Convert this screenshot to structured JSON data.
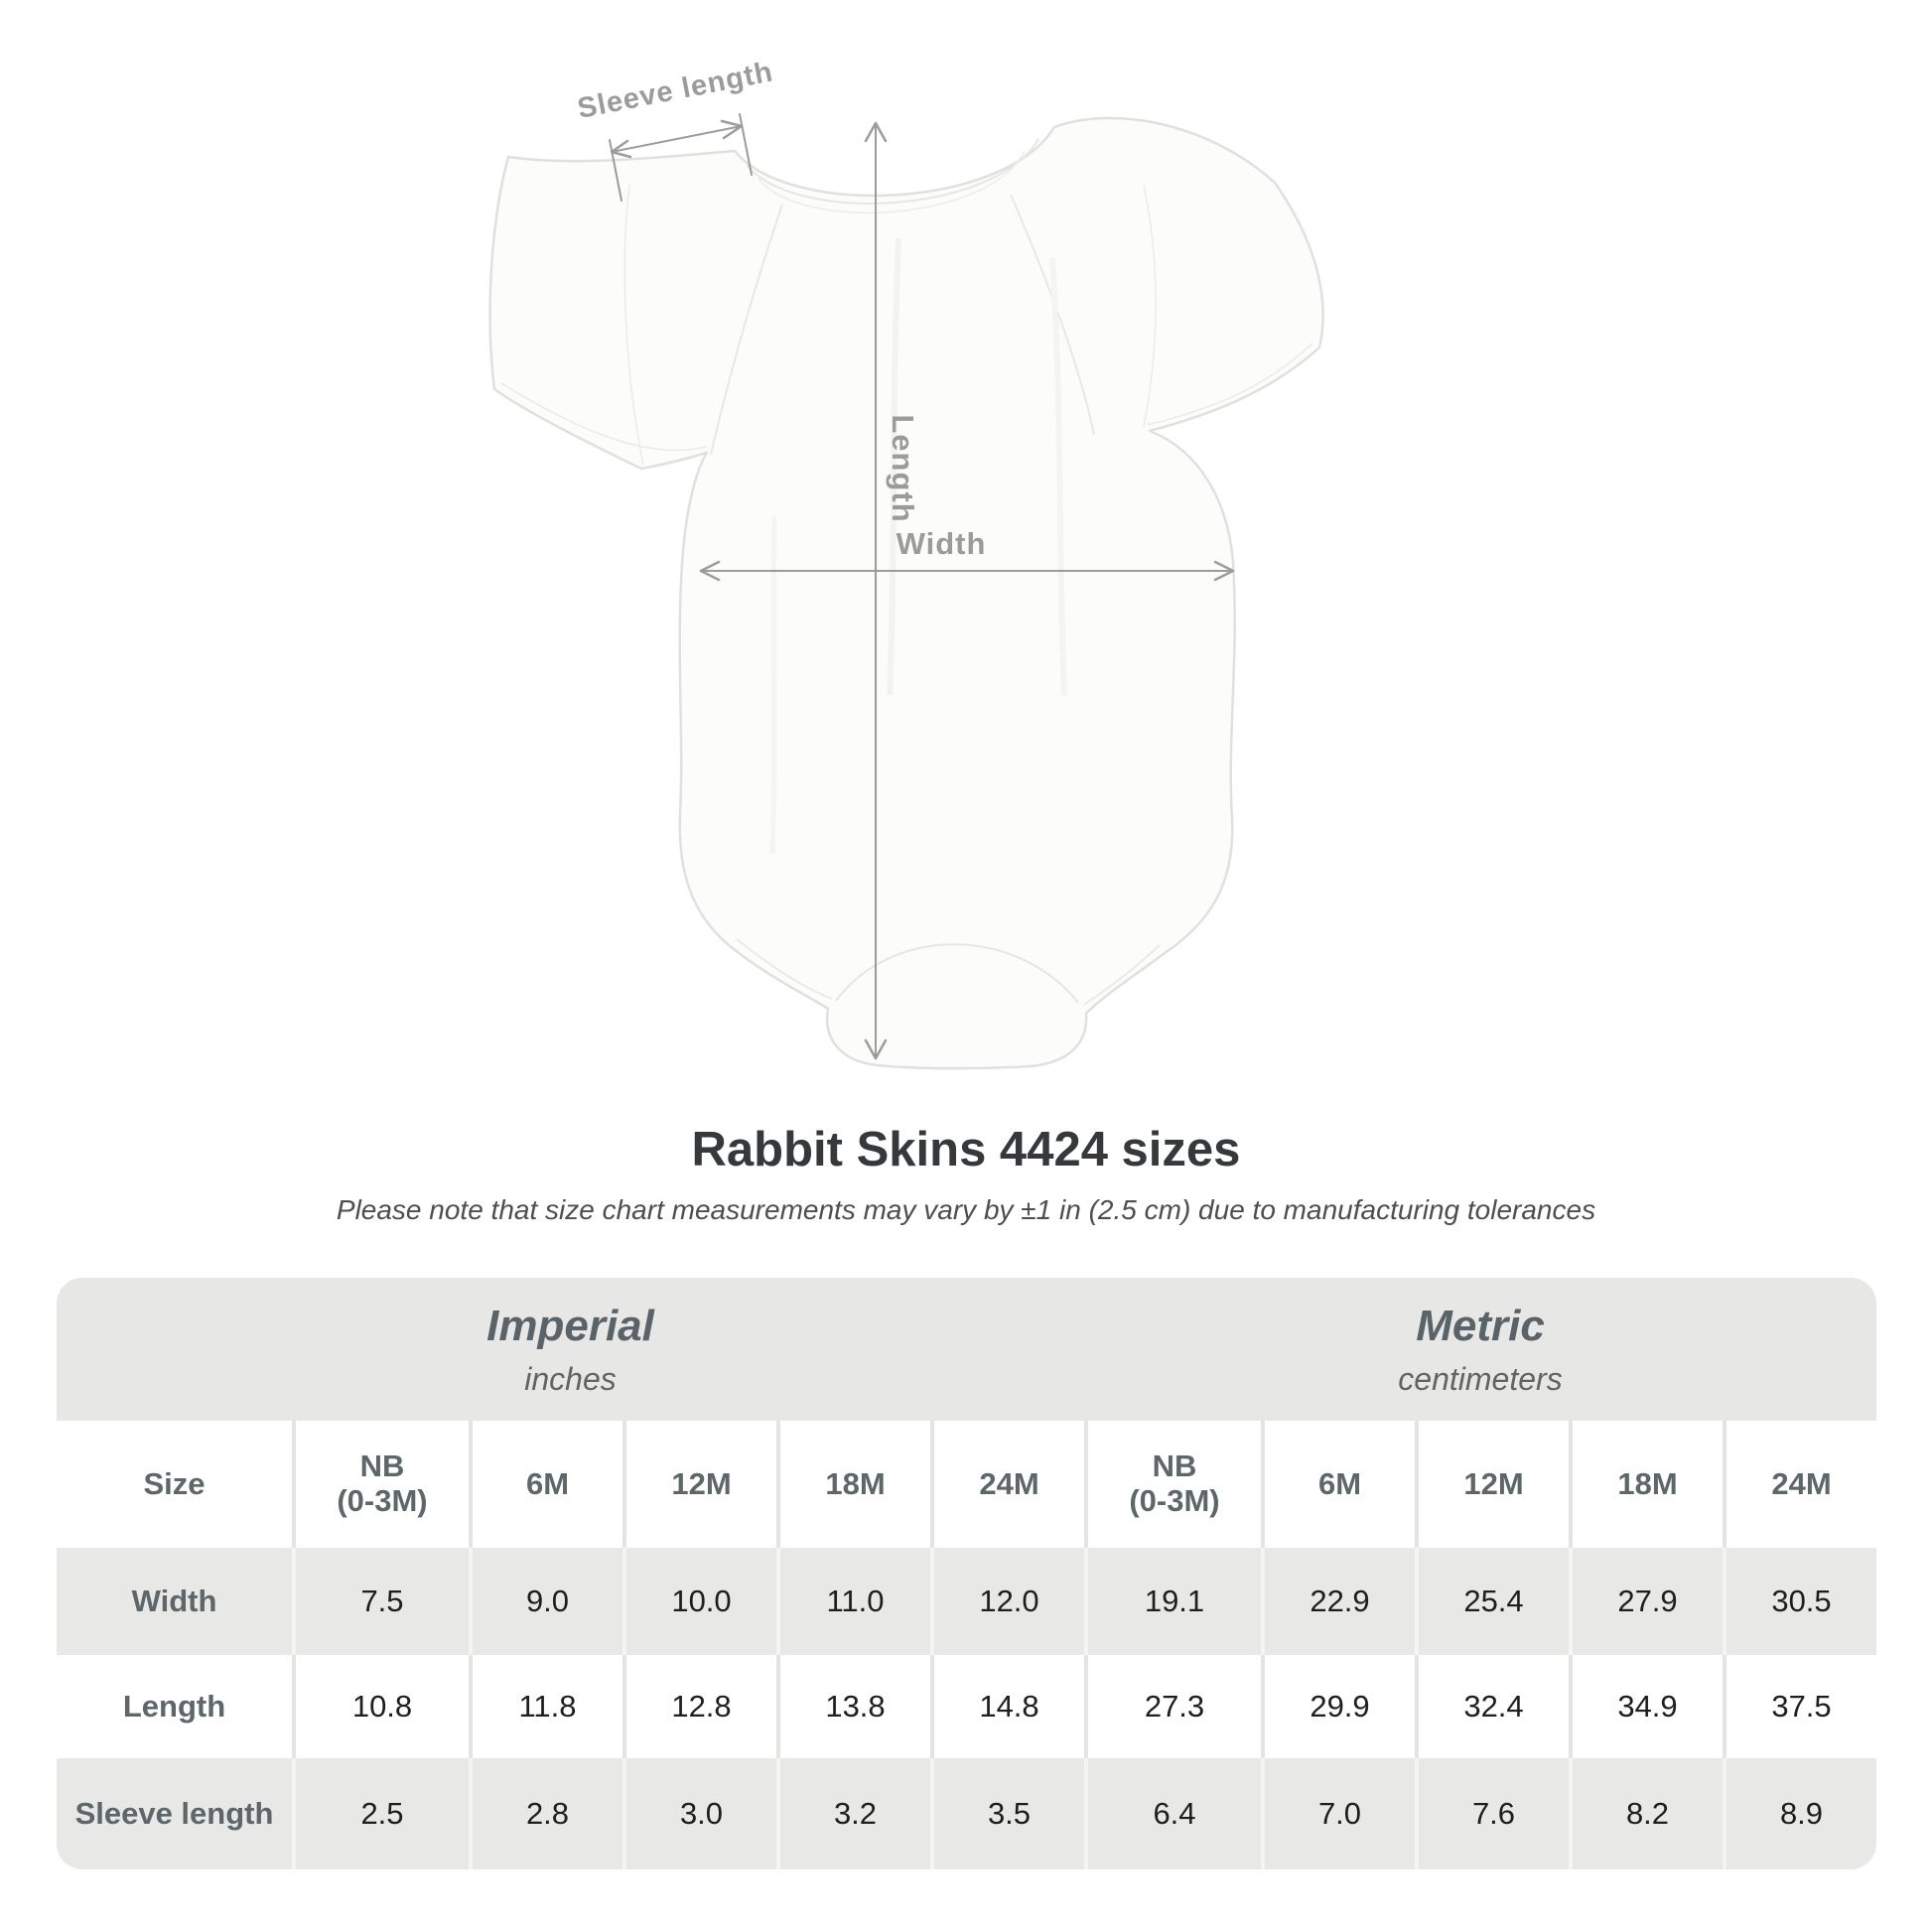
{
  "diagram": {
    "labels": {
      "sleeve_length": "Sleeve length",
      "length": "Length",
      "width": "Width"
    },
    "measure_color": "#9b9b9b",
    "garment_fill": "#fcfcfb",
    "garment_outline": "#e0e0de"
  },
  "title": "Rabbit Skins 4424 sizes",
  "subtitle": "Please note that size chart measurements may vary by ±1 in (2.5 cm) due to manufacturing tolerances",
  "chart_data": {
    "type": "table",
    "title": "Rabbit Skins 4424 sizes",
    "note": "Please note that size chart measurements may vary by ±1 in (2.5 cm) due to manufacturing tolerances",
    "row_header": "Size",
    "column_groups": [
      {
        "label": "Imperial",
        "unit": "inches",
        "sizes": [
          [
            "NB",
            "(0-3M)"
          ],
          [
            "6M"
          ],
          [
            "12M"
          ],
          [
            "18M"
          ],
          [
            "24M"
          ]
        ]
      },
      {
        "label": "Metric",
        "unit": "centimeters",
        "sizes": [
          [
            "NB",
            "(0-3M)"
          ],
          [
            "6M"
          ],
          [
            "12M"
          ],
          [
            "18M"
          ],
          [
            "24M"
          ]
        ]
      }
    ],
    "rows": [
      {
        "label": "Width",
        "imperial": [
          "7.5",
          "9.0",
          "10.0",
          "11.0",
          "12.0"
        ],
        "metric": [
          "19.1",
          "22.9",
          "25.4",
          "27.9",
          "30.5"
        ]
      },
      {
        "label": "Length",
        "imperial": [
          "10.8",
          "11.8",
          "12.8",
          "13.8",
          "14.8"
        ],
        "metric": [
          "27.3",
          "29.9",
          "32.4",
          "34.9",
          "37.5"
        ]
      },
      {
        "label": "Sleeve length",
        "imperial": [
          "2.5",
          "2.8",
          "3.0",
          "3.2",
          "3.5"
        ],
        "metric": [
          "6.4",
          "7.0",
          "7.6",
          "8.2",
          "8.9"
        ]
      }
    ]
  },
  "colors": {
    "table_band": "#e7e7e6",
    "table_row_gray": "#e8e8e7",
    "table_row_white": "#ffffff",
    "header_text": "#5d676a",
    "value_text": "#1e1e1e",
    "title_text": "#35393b"
  }
}
